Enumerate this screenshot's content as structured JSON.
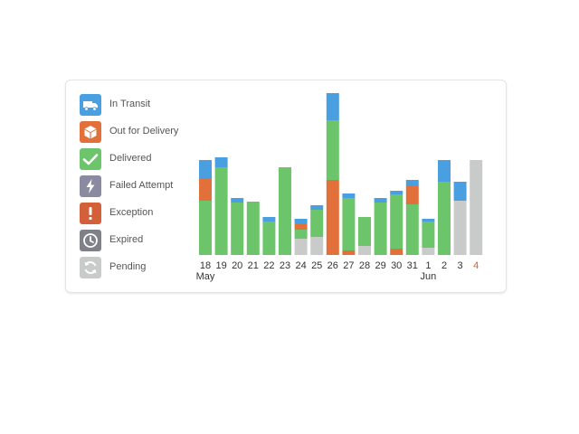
{
  "legend": [
    {
      "label": "In Transit",
      "color": "#4a9fe0",
      "icon": "truck-icon"
    },
    {
      "label": "Out for Delivery",
      "color": "#e2703a",
      "icon": "package-icon"
    },
    {
      "label": "Delivered",
      "color": "#6cc56a",
      "icon": "check-icon"
    },
    {
      "label": "Failed Attempt",
      "color": "#8a8aa0",
      "icon": "lightning-icon"
    },
    {
      "label": "Exception",
      "color": "#d4603a",
      "icon": "exclamation-icon"
    },
    {
      "label": "Expired",
      "color": "#7f8088",
      "icon": "clock-icon"
    },
    {
      "label": "Pending",
      "color": "#c9cbca",
      "icon": "refresh-icon"
    }
  ],
  "chart_data": {
    "type": "bar",
    "stacked": true,
    "categories": [
      "18",
      "19",
      "20",
      "21",
      "22",
      "23",
      "24",
      "25",
      "26",
      "27",
      "28",
      "29",
      "30",
      "31",
      "1",
      "2",
      "3",
      "4"
    ],
    "month_labels": [
      {
        "index": 0,
        "label": "May"
      },
      {
        "index": 14,
        "label": "Jun"
      }
    ],
    "highlight_category": "4",
    "ylim": [
      0,
      180
    ],
    "series": [
      {
        "name": "Pending",
        "color": "#c9cbca",
        "values": [
          0,
          0,
          0,
          0,
          0,
          0,
          18,
          20,
          0,
          0,
          10,
          0,
          0,
          0,
          8,
          0,
          60,
          105
        ]
      },
      {
        "name": "Exception",
        "color": "#d4603a",
        "values": [
          0,
          0,
          0,
          0,
          0,
          0,
          0,
          0,
          0,
          0,
          0,
          0,
          0,
          0,
          0,
          0,
          0,
          0
        ]
      },
      {
        "name": "Out for Delivery",
        "color": "#e2703a",
        "values": [
          0,
          0,
          0,
          0,
          0,
          0,
          0,
          0,
          83,
          5,
          0,
          0,
          7,
          0,
          0,
          0,
          0,
          0
        ]
      },
      {
        "name": "Delivered",
        "color": "#6cc56a",
        "values": [
          60,
          97,
          58,
          59,
          37,
          97,
          10,
          30,
          66,
          58,
          32,
          58,
          60,
          56,
          29,
          81,
          0,
          0
        ]
      },
      {
        "name": "Out for Delivery",
        "color": "#e2703a",
        "values": [
          24,
          0,
          0,
          0,
          0,
          0,
          7,
          0,
          0,
          0,
          0,
          0,
          0,
          21,
          0,
          0,
          0,
          0
        ]
      },
      {
        "name": "In Transit",
        "color": "#4a9fe0",
        "values": [
          21,
          11,
          5,
          0,
          5,
          0,
          5,
          5,
          30,
          5,
          0,
          5,
          4,
          6,
          3,
          24,
          21,
          0
        ]
      }
    ]
  }
}
